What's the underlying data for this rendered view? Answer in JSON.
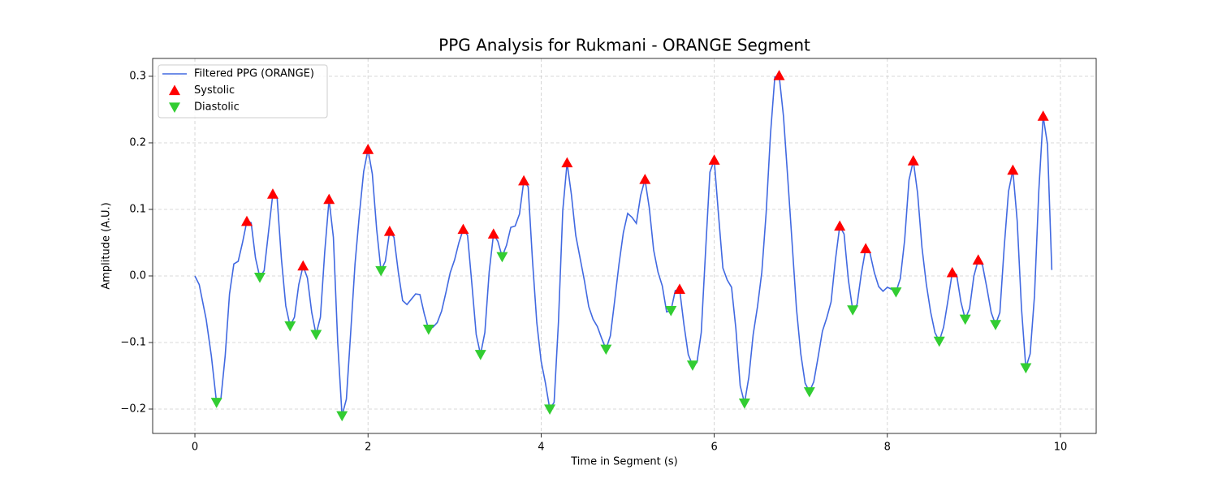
{
  "chart_data": {
    "type": "line",
    "title": "PPG Analysis for Rukmani - ORANGE Segment",
    "x_label": "Time in Segment (s)",
    "y_label": "Amplitude (A.U.)",
    "xlim": [
      -0.488,
      10.413
    ],
    "ylim": [
      -0.2366,
      0.3268
    ],
    "xticks": [
      0,
      2,
      4,
      6,
      8,
      10
    ],
    "yticks": [
      {
        "value": -0.2,
        "label": "−0.2"
      },
      {
        "value": -0.1,
        "label": "−0.1"
      },
      {
        "value": 0,
        "label": "0.0"
      },
      0.1,
      0.2,
      0.3
    ],
    "grid": true,
    "legend": "upper-left",
    "series": [
      {
        "name": "Filtered PPG (ORANGE)",
        "type": "line",
        "color": "#4169e1",
        "x": [
          0,
          0.05,
          0.13,
          0.19,
          0.25,
          0.3,
          0.35,
          0.4,
          0.45,
          0.5,
          0.55,
          0.6,
          0.65,
          0.7,
          0.75,
          0.8,
          0.9,
          0.95,
          1.0,
          1.05,
          1.1,
          1.15,
          1.2,
          1.25,
          1.3,
          1.35,
          1.4,
          1.45,
          1.5,
          1.55,
          1.6,
          1.65,
          1.7,
          1.75,
          1.8,
          1.85,
          1.9,
          1.95,
          2.0,
          2.05,
          2.1,
          2.15,
          2.2,
          2.25,
          2.3,
          2.35,
          2.4,
          2.45,
          2.5,
          2.55,
          2.6,
          2.65,
          2.7,
          2.75,
          2.8,
          2.85,
          2.9,
          2.95,
          3.0,
          3.05,
          3.1,
          3.15,
          3.2,
          3.25,
          3.3,
          3.35,
          3.4,
          3.45,
          3.5,
          3.55,
          3.6,
          3.65,
          3.7,
          3.75,
          3.8,
          3.85,
          3.9,
          3.95,
          4.0,
          4.05,
          4.1,
          4.15,
          4.2,
          4.25,
          4.3,
          4.35,
          4.4,
          4.45,
          4.5,
          4.55,
          4.6,
          4.65,
          4.7,
          4.75,
          4.8,
          4.85,
          4.9,
          4.95,
          5.0,
          5.05,
          5.1,
          5.15,
          5.2,
          5.25,
          5.3,
          5.35,
          5.4,
          5.45,
          5.5,
          5.55,
          5.6,
          5.65,
          5.7,
          5.75,
          5.8,
          5.85,
          5.9,
          5.95,
          6.0,
          6.05,
          6.1,
          6.15,
          6.2,
          6.25,
          6.3,
          6.35,
          6.4,
          6.45,
          6.5,
          6.55,
          6.6,
          6.65,
          6.7,
          6.75,
          6.8,
          6.85,
          6.9,
          6.95,
          7.0,
          7.05,
          7.1,
          7.15,
          7.2,
          7.25,
          7.3,
          7.35,
          7.4,
          7.45,
          7.5,
          7.55,
          7.6,
          7.65,
          7.7,
          7.75,
          7.8,
          7.85,
          7.9,
          7.95,
          8.0,
          8.05,
          8.1,
          8.15,
          8.2,
          8.25,
          8.3,
          8.35,
          8.4,
          8.45,
          8.5,
          8.55,
          8.6,
          8.65,
          8.7,
          8.75,
          8.8,
          8.85,
          8.9,
          8.95,
          9.0,
          9.05,
          9.1,
          9.15,
          9.2,
          9.25,
          9.3,
          9.35,
          9.4,
          9.45,
          9.5,
          9.55,
          9.6,
          9.65,
          9.7,
          9.75,
          9.8,
          9.85,
          9.9
        ],
        "values": [
          0,
          -0.013,
          -0.065,
          -0.12,
          -0.19,
          -0.185,
          -0.12,
          -0.027,
          0.018,
          0.022,
          0.05,
          0.082,
          0.08,
          0.027,
          -0.002,
          0.008,
          0.123,
          0.117,
          0.025,
          -0.045,
          -0.075,
          -0.062,
          -0.013,
          0.015,
          -0.003,
          -0.055,
          -0.088,
          -0.062,
          0.036,
          0.115,
          0.058,
          -0.1,
          -0.21,
          -0.185,
          -0.085,
          0.018,
          0.092,
          0.157,
          0.19,
          0.153,
          0.07,
          0.008,
          0.022,
          0.067,
          0.058,
          0.006,
          -0.037,
          -0.043,
          -0.035,
          -0.027,
          -0.028,
          -0.057,
          -0.08,
          -0.077,
          -0.07,
          -0.053,
          -0.025,
          0.005,
          0.024,
          0.05,
          0.07,
          0.061,
          -0.012,
          -0.088,
          -0.118,
          -0.085,
          0.006,
          0.063,
          0.052,
          0.029,
          0.046,
          0.073,
          0.075,
          0.093,
          0.143,
          0.134,
          0.024,
          -0.07,
          -0.128,
          -0.161,
          -0.2,
          -0.19,
          -0.07,
          0.098,
          0.17,
          0.122,
          0.061,
          0.027,
          -0.007,
          -0.046,
          -0.065,
          -0.076,
          -0.094,
          -0.11,
          -0.09,
          -0.037,
          0.018,
          0.065,
          0.094,
          0.088,
          0.079,
          0.121,
          0.145,
          0.102,
          0.039,
          0.006,
          -0.015,
          -0.054,
          -0.052,
          -0.022,
          -0.02,
          -0.073,
          -0.118,
          -0.134,
          -0.13,
          -0.085,
          0.037,
          0.156,
          0.174,
          0.091,
          0.012,
          -0.006,
          -0.017,
          -0.079,
          -0.165,
          -0.191,
          -0.152,
          -0.088,
          -0.046,
          0.006,
          0.095,
          0.213,
          0.299,
          0.301,
          0.24,
          0.146,
          0.049,
          -0.049,
          -0.117,
          -0.161,
          -0.174,
          -0.159,
          -0.122,
          -0.083,
          -0.063,
          -0.039,
          0.024,
          0.075,
          0.063,
          -0.006,
          -0.051,
          -0.043,
          0.004,
          0.041,
          0.034,
          0.005,
          -0.016,
          -0.023,
          -0.017,
          -0.02,
          -0.024,
          -0.004,
          0.054,
          0.144,
          0.173,
          0.124,
          0.043,
          -0.012,
          -0.054,
          -0.085,
          -0.098,
          -0.077,
          -0.037,
          0.005,
          0.002,
          -0.039,
          -0.065,
          -0.049,
          0,
          0.024,
          0.016,
          -0.018,
          -0.055,
          -0.073,
          -0.055,
          0.043,
          0.127,
          0.159,
          0.083,
          -0.049,
          -0.138,
          -0.117,
          -0.03,
          0.128,
          0.24,
          0.198,
          0.009
        ]
      },
      {
        "name": "Systolic",
        "type": "scatter",
        "marker": "triangle-up",
        "color": "#ff0000",
        "x": [
          0.6,
          0.9,
          1.25,
          1.55,
          2.0,
          2.25,
          3.1,
          3.45,
          3.8,
          4.3,
          5.2,
          5.6,
          6.0,
          6.75,
          7.45,
          7.75,
          8.3,
          8.75,
          9.05,
          9.45,
          9.8
        ],
        "values": [
          0.082,
          0.123,
          0.015,
          0.115,
          0.19,
          0.067,
          0.07,
          0.063,
          0.143,
          0.17,
          0.145,
          -0.02,
          0.174,
          0.301,
          0.075,
          0.041,
          0.173,
          0.005,
          0.024,
          0.159,
          0.24
        ]
      },
      {
        "name": "Diastolic",
        "type": "scatter",
        "marker": "triangle-down",
        "color": "#32cd32",
        "x": [
          0.25,
          0.75,
          1.1,
          1.4,
          1.7,
          2.15,
          2.7,
          3.3,
          3.55,
          4.1,
          4.75,
          5.5,
          5.75,
          6.35,
          7.1,
          7.6,
          8.1,
          8.6,
          8.9,
          9.25,
          9.6
        ],
        "values": [
          -0.19,
          -0.002,
          -0.075,
          -0.088,
          -0.21,
          0.008,
          -0.08,
          -0.118,
          0.029,
          -0.2,
          -0.11,
          -0.052,
          -0.134,
          -0.191,
          -0.174,
          -0.051,
          -0.024,
          -0.098,
          -0.065,
          -0.073,
          -0.138
        ]
      }
    ]
  }
}
